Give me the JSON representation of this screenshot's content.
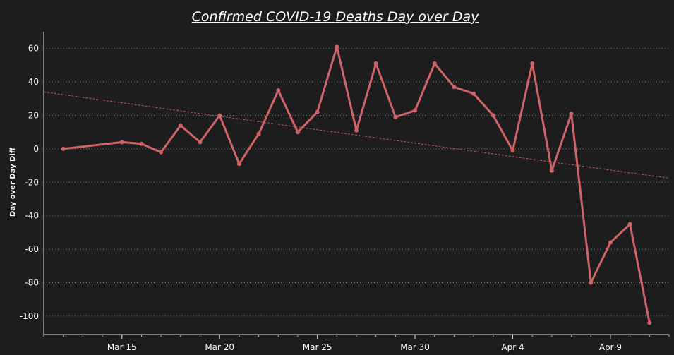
{
  "chart_data": {
    "type": "line",
    "title": "Confirmed COVID-19 Deaths Day over Day",
    "xlabel": "",
    "ylabel": "Day over Day Diff",
    "x_tick_labels": [
      "Mar 15",
      "Mar 20",
      "Mar 25",
      "Mar 30",
      "Apr 4",
      "Apr 9"
    ],
    "y_ticks": [
      60,
      40,
      20,
      0,
      -20,
      -40,
      -60,
      -80,
      -100
    ],
    "ylim": [
      -111,
      70
    ],
    "xlim": [
      "Mar 11",
      "Apr 12"
    ],
    "grid": true,
    "colors": {
      "line": "#cf6366",
      "trend": "#b85d5c",
      "background": "#1d1d1d",
      "text": "#ffffff"
    },
    "trend_line": {
      "style": "dashed",
      "start": {
        "x": "Mar 11",
        "y": 34
      },
      "end": {
        "x": "Apr 12",
        "y": -17.5
      }
    },
    "series": [
      {
        "x": [
          "Mar 12",
          "Mar 15",
          "Mar 16",
          "Mar 17",
          "Mar 18",
          "Mar 19",
          "Mar 20",
          "Mar 21",
          "Mar 22",
          "Mar 23",
          "Mar 24",
          "Mar 25",
          "Mar 26",
          "Mar 27",
          "Mar 28",
          "Mar 29",
          "Mar 30",
          "Mar 31",
          "Apr 1",
          "Apr 2",
          "Apr 3",
          "Apr 4",
          "Apr 5",
          "Apr 6",
          "Apr 7",
          "Apr 8",
          "Apr 9",
          "Apr 10",
          "Apr 11"
        ],
        "values": [
          0,
          4,
          3,
          -2,
          14,
          4,
          20,
          -9,
          9,
          35,
          10,
          22,
          61,
          11,
          51,
          19,
          23,
          51,
          37,
          33,
          20,
          -1,
          51,
          -13,
          21,
          -80,
          -56,
          -45,
          -104
        ]
      }
    ]
  }
}
